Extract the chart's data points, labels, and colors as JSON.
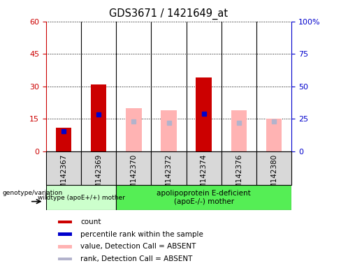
{
  "title": "GDS3671 / 1421649_at",
  "samples": [
    "GSM142367",
    "GSM142369",
    "GSM142370",
    "GSM142372",
    "GSM142374",
    "GSM142376",
    "GSM142380"
  ],
  "count_values": [
    11,
    31,
    null,
    null,
    34,
    null,
    null
  ],
  "rank_values": [
    15.5,
    28.5,
    null,
    null,
    29,
    null,
    null
  ],
  "absent_value_values": [
    null,
    null,
    20,
    19,
    null,
    19,
    15
  ],
  "absent_rank_values": [
    null,
    null,
    23,
    22,
    null,
    22,
    23
  ],
  "ylim_left": [
    0,
    60
  ],
  "ylim_right": [
    0,
    100
  ],
  "yticks_left": [
    0,
    15,
    30,
    45,
    60
  ],
  "yticks_right": [
    0,
    25,
    50,
    75,
    100
  ],
  "ytick_labels_right": [
    "0",
    "25",
    "50",
    "75",
    "100%"
  ],
  "group1_label": "wildtype (apoE+/+) mother",
  "group2_label": "apolipoprotein E-deficient\n(apoE-/-) mother",
  "genotype_label": "genotype/variation",
  "color_count": "#cc0000",
  "color_rank": "#0000cc",
  "color_absent_value": "#ffb3b3",
  "color_absent_rank": "#b3b3cc",
  "color_group1_bg": "#ccffcc",
  "color_group2_bg": "#55ee55",
  "color_sample_bg": "#d8d8d8",
  "bar_width": 0.45,
  "legend_labels": [
    "count",
    "percentile rank within the sample",
    "value, Detection Call = ABSENT",
    "rank, Detection Call = ABSENT"
  ]
}
